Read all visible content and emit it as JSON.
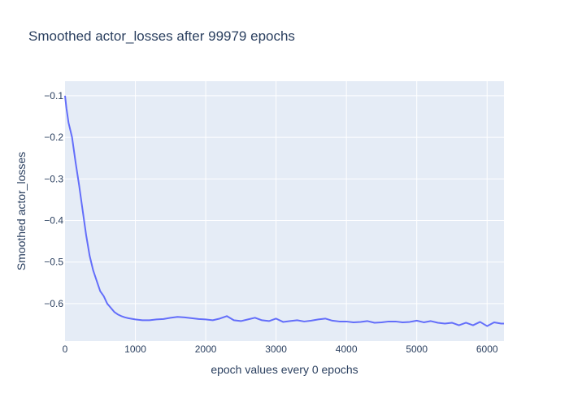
{
  "chart_data": {
    "type": "line",
    "title": "Smoothed actor_losses after 99979 epochs",
    "xlabel": "epoch values every 0 epochs",
    "ylabel": "Smoothed actor_losses",
    "xlim": [
      0,
      6240
    ],
    "ylim": [
      -0.69,
      -0.065
    ],
    "x_ticks": [
      0,
      1000,
      2000,
      3000,
      4000,
      5000,
      6000
    ],
    "x_tick_labels": [
      "0",
      "1000",
      "2000",
      "3000",
      "4000",
      "5000",
      "6000"
    ],
    "y_ticks": [
      -0.1,
      -0.2,
      -0.3,
      -0.4,
      -0.5,
      -0.6
    ],
    "y_tick_labels": [
      "−0.1",
      "−0.2",
      "−0.3",
      "−0.4",
      "−0.5",
      "−0.6"
    ],
    "grid": true,
    "background_color": "#e5ecf6",
    "series": [
      {
        "color": "#636efa",
        "x": [
          0,
          20,
          50,
          100,
          150,
          200,
          250,
          300,
          350,
          400,
          450,
          500,
          550,
          600,
          650,
          700,
          750,
          800,
          850,
          900,
          1000,
          1100,
          1200,
          1300,
          1400,
          1500,
          1600,
          1700,
          1800,
          1900,
          2000,
          2100,
          2200,
          2300,
          2400,
          2500,
          2600,
          2700,
          2800,
          2900,
          3000,
          3100,
          3200,
          3300,
          3400,
          3500,
          3600,
          3700,
          3800,
          3900,
          4000,
          4100,
          4200,
          4300,
          4400,
          4500,
          4600,
          4700,
          4800,
          4900,
          5000,
          5100,
          5200,
          5300,
          5400,
          5500,
          5600,
          5700,
          5800,
          5900,
          6000,
          6100,
          6200,
          6240
        ],
        "y": [
          -0.1,
          -0.13,
          -0.165,
          -0.2,
          -0.26,
          -0.315,
          -0.375,
          -0.435,
          -0.485,
          -0.52,
          -0.545,
          -0.57,
          -0.582,
          -0.6,
          -0.61,
          -0.62,
          -0.626,
          -0.63,
          -0.633,
          -0.635,
          -0.638,
          -0.64,
          -0.64,
          -0.638,
          -0.637,
          -0.634,
          -0.632,
          -0.633,
          -0.635,
          -0.637,
          -0.638,
          -0.64,
          -0.636,
          -0.63,
          -0.64,
          -0.642,
          -0.638,
          -0.634,
          -0.64,
          -0.642,
          -0.636,
          -0.644,
          -0.642,
          -0.64,
          -0.643,
          -0.641,
          -0.638,
          -0.636,
          -0.641,
          -0.643,
          -0.643,
          -0.645,
          -0.644,
          -0.642,
          -0.646,
          -0.645,
          -0.643,
          -0.643,
          -0.645,
          -0.644,
          -0.641,
          -0.645,
          -0.642,
          -0.646,
          -0.648,
          -0.646,
          -0.652,
          -0.646,
          -0.652,
          -0.644,
          -0.654,
          -0.645,
          -0.648,
          -0.648
        ]
      }
    ]
  }
}
